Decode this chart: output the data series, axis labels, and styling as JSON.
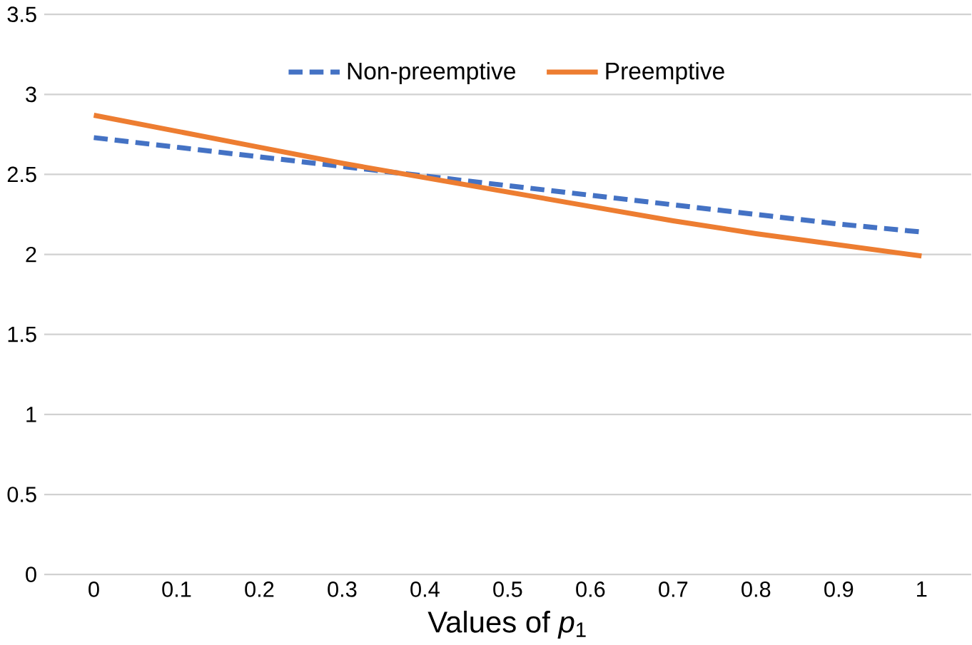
{
  "chart_data": {
    "type": "line",
    "xlabel": "Values of *p*$_{1}$",
    "categories": [
      "0",
      "0.1",
      "0.2",
      "0.3",
      "0.4",
      "0.5",
      "0.6",
      "0.7",
      "0.8",
      "0.9",
      "1"
    ],
    "series": [
      {
        "name": "Non-preemptive",
        "color": "#4472c4",
        "line_style": "dashed",
        "values": [
          2.73,
          2.67,
          2.61,
          2.55,
          2.49,
          2.43,
          2.37,
          2.31,
          2.25,
          2.19,
          2.14
        ]
      },
      {
        "name": "Preemptive",
        "color": "#ed7d31",
        "line_style": "solid",
        "values": [
          2.87,
          2.77,
          2.67,
          2.57,
          2.48,
          2.39,
          2.3,
          2.21,
          2.13,
          2.06,
          1.99
        ]
      }
    ],
    "ylim": [
      0,
      3.5
    ],
    "yticks": [
      0,
      0.5,
      1,
      1.5,
      2,
      2.5,
      3,
      3.5
    ],
    "grid": "y",
    "legend": "top",
    "marker": "none"
  }
}
